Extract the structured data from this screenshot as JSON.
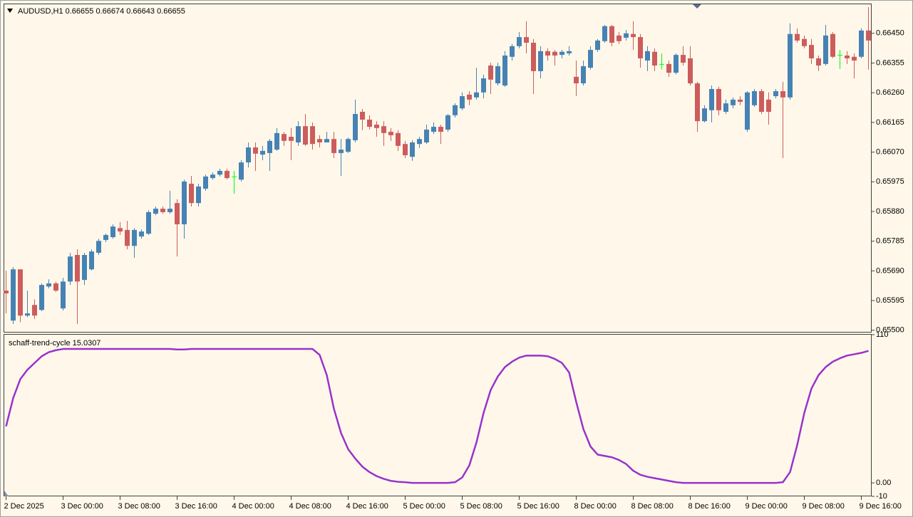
{
  "chart_data": [
    {
      "type": "candlestick",
      "title": "AUDUSD,H1  0.66655 0.66674 0.66643 0.66655",
      "up_color": "#4682b4",
      "down_color": "#cd5c5c",
      "doji_color": "#00ff00",
      "categories": [
        "2 Dec 2025",
        null,
        null,
        null,
        null,
        null,
        null,
        null,
        "3 Dec 00:00",
        null,
        null,
        null,
        null,
        null,
        null,
        null,
        "3 Dec 08:00",
        null,
        null,
        null,
        null,
        null,
        null,
        null,
        "3 Dec 16:00",
        null,
        null,
        null,
        null,
        null,
        null,
        null,
        "4 Dec 00:00",
        null,
        null,
        null,
        null,
        null,
        null,
        null,
        "4 Dec 08:00",
        null,
        null,
        null,
        null,
        null,
        null,
        null,
        "4 Dec 16:00",
        null,
        null,
        null,
        null,
        null,
        null,
        null,
        "5 Dec 00:00",
        null,
        null,
        null,
        null,
        null,
        null,
        null,
        "5 Dec 08:00",
        null,
        null,
        null,
        null,
        null,
        null,
        null,
        "5 Dec 16:00",
        null,
        null,
        null,
        null,
        null,
        null,
        null,
        "8 Dec 00:00",
        null,
        null,
        null,
        null,
        null,
        null,
        null,
        "8 Dec 08:00",
        null,
        null,
        null,
        null,
        null,
        null,
        null,
        "8 Dec 16:00",
        null,
        null,
        null,
        null,
        null,
        null,
        null,
        "9 Dec 00:00",
        null,
        null,
        null,
        null,
        null,
        null,
        null,
        "9 Dec 08:00",
        null,
        null,
        null,
        null,
        null,
        null,
        null,
        "9 Dec 16:00",
        null
      ],
      "open": [
        0.65627,
        0.65531,
        0.65695,
        0.65547,
        0.65581,
        0.65565,
        0.6564,
        0.6565,
        0.6557,
        0.65656,
        0.65741,
        0.65661,
        0.65695,
        0.65748,
        0.65789,
        0.65798,
        0.65827,
        0.65821,
        0.6577,
        0.658,
        0.65809,
        0.65873,
        0.65889,
        0.65878,
        0.65907,
        0.65839,
        0.65969,
        0.65907,
        0.65953,
        0.65987,
        0.65998,
        0.6601,
        0.65992,
        0.65982,
        0.66037,
        0.66085,
        0.66062,
        0.66067,
        0.66078,
        0.66128,
        0.66119,
        0.66101,
        0.66153,
        0.66153,
        0.66112,
        0.66101,
        0.66112,
        0.66067,
        0.66071,
        0.66108,
        0.66199,
        0.66174,
        0.66158,
        0.66153,
        0.66135,
        0.66131,
        0.66096,
        0.66055,
        0.66096,
        0.66101,
        0.66135,
        0.66151,
        0.66142,
        0.66188,
        0.6621,
        0.66254,
        0.66245,
        0.66261,
        0.66347,
        0.6629,
        0.66283,
        0.66375,
        0.66409,
        0.66438,
        0.6642,
        0.66329,
        0.66393,
        0.66391,
        0.66381,
        0.66386,
        0.66311,
        0.6629,
        0.6634,
        0.66397,
        0.66425,
        0.66473,
        0.66443,
        0.66436,
        0.66448,
        0.66438,
        0.66363,
        0.66391,
        0.66352,
        0.66352,
        0.66324,
        0.66381,
        0.6637,
        0.6629,
        0.66169,
        0.66204,
        0.66272,
        0.66199,
        0.6622,
        0.66238,
        0.66142,
        0.6622,
        0.66265,
        0.66238,
        0.66249,
        0.66265,
        0.66245,
        0.66448,
        0.66432,
        0.66413,
        0.6637,
        0.66352,
        0.66448,
        0.66381,
        0.66379,
        0.66375,
        0.66375,
        0.66459
      ],
      "high": [
        0.65691,
        0.65702,
        0.65695,
        0.65627,
        0.65599,
        0.6565,
        0.65663,
        0.65656,
        0.65668,
        0.65748,
        0.65759,
        0.65748,
        0.65759,
        0.65793,
        0.65809,
        0.65839,
        0.65846,
        0.6585,
        0.65827,
        0.65823,
        0.65884,
        0.65896,
        0.65896,
        0.65946,
        0.65919,
        0.65982,
        0.65994,
        0.65969,
        0.65998,
        0.66005,
        0.66017,
        0.66017,
        0.6601,
        0.66044,
        0.66101,
        0.66101,
        0.6609,
        0.66112,
        0.66147,
        0.66135,
        0.66147,
        0.66169,
        0.66192,
        0.66165,
        0.66124,
        0.66135,
        0.66135,
        0.66112,
        0.66117,
        0.66238,
        0.66208,
        0.66188,
        0.66169,
        0.66169,
        0.66147,
        0.6614,
        0.66106,
        0.66108,
        0.66119,
        0.66158,
        0.66165,
        0.66158,
        0.66192,
        0.66226,
        0.66261,
        0.66265,
        0.6634,
        0.66318,
        0.66356,
        0.66356,
        0.66393,
        0.66416,
        0.66454,
        0.66489,
        0.66432,
        0.66409,
        0.66402,
        0.66397,
        0.66397,
        0.66409,
        0.66363,
        0.66363,
        0.66409,
        0.66432,
        0.66477,
        0.66477,
        0.66454,
        0.66461,
        0.66489,
        0.66448,
        0.66409,
        0.66402,
        0.66386,
        0.66363,
        0.66386,
        0.66409,
        0.66409,
        0.66295,
        0.6622,
        0.66283,
        0.66279,
        0.66238,
        0.66245,
        0.66249,
        0.66265,
        0.66272,
        0.66272,
        0.66261,
        0.66272,
        0.66295,
        0.66482,
        0.66466,
        0.66443,
        0.66432,
        0.66379,
        0.66477,
        0.66454,
        0.66397,
        0.66393,
        0.66386,
        0.66466,
        0.66534
      ],
      "low": [
        0.65554,
        0.6552,
        0.65526,
        0.65542,
        0.65536,
        0.65561,
        0.65634,
        0.65622,
        0.65563,
        0.65645,
        0.6552,
        0.65645,
        0.65691,
        0.65741,
        0.65782,
        0.65793,
        0.65805,
        0.65759,
        0.65732,
        0.65793,
        0.65805,
        0.65868,
        0.65873,
        0.65873,
        0.65736,
        0.65793,
        0.65896,
        0.65896,
        0.65946,
        0.65982,
        0.65992,
        0.65982,
        0.65937,
        0.65976,
        0.66021,
        0.6601,
        0.66044,
        0.6601,
        0.66074,
        0.6609,
        0.66044,
        0.6609,
        0.6609,
        0.66078,
        0.66085,
        0.66101,
        0.66051,
        0.65994,
        0.66067,
        0.66101,
        0.6614,
        0.66142,
        0.66119,
        0.6609,
        0.66106,
        0.66074,
        0.66051,
        0.66042,
        0.66083,
        0.66096,
        0.66128,
        0.66096,
        0.66135,
        0.66181,
        0.66204,
        0.6622,
        0.66238,
        0.66242,
        0.66256,
        0.66283,
        0.66279,
        0.66363,
        0.66402,
        0.66386,
        0.66256,
        0.66306,
        0.66363,
        0.66347,
        0.6637,
        0.66379,
        0.66249,
        0.66283,
        0.66334,
        0.66391,
        0.6642,
        0.66409,
        0.66416,
        0.66427,
        0.66397,
        0.6634,
        0.66329,
        0.66329,
        0.66334,
        0.66311,
        0.66318,
        0.66347,
        0.66283,
        0.66135,
        0.66165,
        0.66165,
        0.66188,
        0.66192,
        0.6621,
        0.6622,
        0.66135,
        0.66215,
        0.66192,
        0.66158,
        0.66242,
        0.66051,
        0.66238,
        0.6642,
        0.66402,
        0.66352,
        0.66329,
        0.66347,
        0.6637,
        0.66336,
        0.66352,
        0.66306,
        0.6637,
        0.66334
      ],
      "close": [
        0.65618,
        0.65695,
        0.65547,
        0.65554,
        0.65547,
        0.65645,
        0.6565,
        0.65627,
        0.65656,
        0.65736,
        0.65656,
        0.65741,
        0.65752,
        0.65786,
        0.65805,
        0.65832,
        0.65816,
        0.6577,
        0.65821,
        0.65816,
        0.65878,
        0.65889,
        0.65878,
        0.65889,
        0.65839,
        0.65976,
        0.65907,
        0.6596,
        0.65992,
        0.65998,
        0.6601,
        0.65987,
        0.65992,
        0.66037,
        0.66085,
        0.66065,
        0.66074,
        0.66106,
        0.66131,
        0.66106,
        0.66106,
        0.66153,
        0.66094,
        0.66096,
        0.66101,
        0.66112,
        0.66067,
        0.66078,
        0.66112,
        0.66192,
        0.66174,
        0.66151,
        0.66147,
        0.66131,
        0.66124,
        0.6609,
        0.6606,
        0.66101,
        0.66112,
        0.66142,
        0.66151,
        0.66135,
        0.66188,
        0.6622,
        0.66249,
        0.66238,
        0.66261,
        0.66306,
        0.66302,
        0.66345,
        0.66379,
        0.66409,
        0.66438,
        0.6642,
        0.66329,
        0.66393,
        0.66379,
        0.66379,
        0.66391,
        0.66393,
        0.6629,
        0.66345,
        0.66397,
        0.66427,
        0.66473,
        0.6642,
        0.66425,
        0.6645,
        0.66438,
        0.6637,
        0.66393,
        0.66347,
        0.66352,
        0.66324,
        0.66381,
        0.66356,
        0.6629,
        0.66169,
        0.6621,
        0.66272,
        0.66204,
        0.66226,
        0.66238,
        0.66231,
        0.66261,
        0.66265,
        0.66199,
        0.66199,
        0.66265,
        0.66245,
        0.66448,
        0.66427,
        0.66409,
        0.6637,
        0.66347,
        0.66443,
        0.66375,
        0.66381,
        0.6637,
        0.66363,
        0.66459,
        0.66427
      ],
      "ylim": [
        0.65495,
        0.66543
      ],
      "yticks": [
        {
          "value": 0.6645,
          "label": "0.66450"
        },
        0.66355,
        {
          "value": 0.6626,
          "label": "0.66260"
        },
        0.66165,
        {
          "value": 0.6607,
          "label": "0.66070"
        },
        0.65975,
        {
          "value": 0.6588,
          "label": "0.65880"
        },
        0.65785,
        {
          "value": 0.6569,
          "label": "0.65690"
        },
        0.65595,
        {
          "value": 0.655,
          "label": "0.65500"
        }
      ]
    },
    {
      "type": "line",
      "title": "schaff-trend-cycle 15.0307",
      "color": "#9932cc",
      "values": [
        42,
        63,
        77,
        84,
        89,
        94,
        97,
        98.5,
        99.4,
        99.4,
        99.4,
        99.4,
        99.4,
        99.4,
        99.4,
        99.4,
        99.4,
        99.4,
        99.4,
        99.4,
        99.4,
        99.4,
        99.4,
        99.4,
        99,
        99,
        99.4,
        99.4,
        99.4,
        99.4,
        99.4,
        99.4,
        99.4,
        99.4,
        99.4,
        99.4,
        99.4,
        99.4,
        99.4,
        99.4,
        99.4,
        99.4,
        99.4,
        99.4,
        95,
        80,
        55,
        37,
        25,
        18,
        12,
        8,
        5,
        3,
        1.5,
        0.8,
        0.5,
        0,
        0,
        0,
        0,
        0,
        0,
        0.5,
        4,
        13,
        30,
        52,
        69,
        79,
        86,
        90,
        93,
        94.5,
        94.5,
        94.5,
        94,
        92,
        89,
        82,
        60,
        40,
        27,
        21,
        20,
        19,
        17,
        14,
        9,
        6,
        4.5,
        3.5,
        2.5,
        1.5,
        0.5,
        0,
        0,
        0,
        0,
        0,
        0,
        0,
        0,
        0,
        0,
        0,
        0,
        0,
        0,
        0.5,
        8,
        28,
        52,
        70,
        80,
        86,
        90,
        92.5,
        94.5,
        95.5,
        96.5,
        98
      ],
      "ylim": [
        -10,
        110
      ],
      "yticks": [
        110,
        {
          "value": 0,
          "label": "0.00"
        },
        -10
      ]
    }
  ]
}
